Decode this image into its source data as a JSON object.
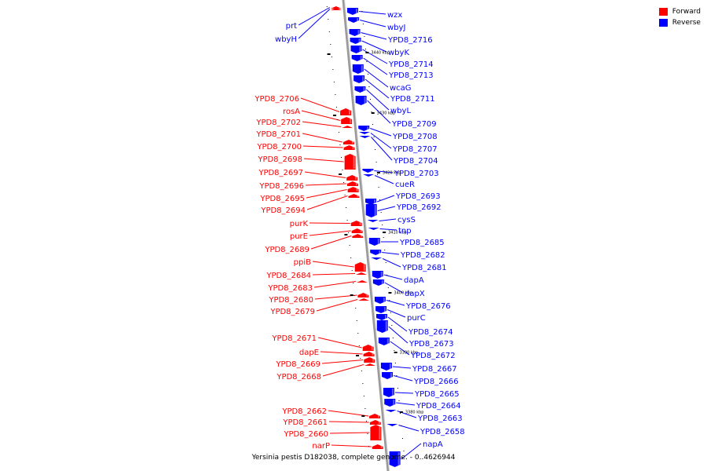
{
  "caption": "Yersinia pestis D182038, complete genome. - 0..4626944",
  "colors": {
    "forward": "#ff0000",
    "reverse": "#0000ff",
    "axis": "#888888"
  },
  "legend": [
    {
      "label": "Forward",
      "color": "#ff0000"
    },
    {
      "label": "Reverse",
      "color": "#0000ff"
    }
  ],
  "scale_ticks": [
    "3440 kbp",
    "3430 kbp",
    "3420 kbp",
    "3410 kbp",
    "3400 kbp",
    "3390 kbp",
    "3380 kbp"
  ],
  "forward_genes": [
    "prt",
    "wbyH",
    "YPD8_2706",
    "rosA",
    "YPD8_2702",
    "YPD8_2701",
    "YPD8_2700",
    "YPD8_2698",
    "YPD8_2697",
    "YPD8_2696",
    "YPD8_2695",
    "YPD8_2694",
    "purK",
    "purE",
    "YPD8_2689",
    "ppiB",
    "YPD8_2684",
    "YPD8_2683",
    "YPD8_2680",
    "YPD8_2679",
    "YPD8_2671",
    "dapE",
    "YPD8_2669",
    "YPD8_2668",
    "YPD8_2662",
    "YPD8_2661",
    "YPD8_2660",
    "narP"
  ],
  "reverse_genes": [
    "wzx",
    "wbyJ",
    "YPD8_2716",
    "wbyK",
    "YPD8_2714",
    "YPD8_2713",
    "wcaG",
    "YPD8_2711",
    "wbyL",
    "YPD8_2709",
    "YPD8_2708",
    "YPD8_2707",
    "YPD8_2704",
    "YPD8_2703",
    "cueR",
    "YPD8_2693",
    "YPD8_2692",
    "cysS",
    "tnp",
    "YPD8_2685",
    "YPD8_2682",
    "YPD8_2681",
    "dapA",
    "dapX",
    "YPD8_2676",
    "purC",
    "YPD8_2674",
    "YPD8_2673",
    "YPD8_2672",
    "YPD8_2667",
    "YPD8_2666",
    "YPD8_2665",
    "YPD8_2664",
    "YPD8_2663",
    "YPD8_2658",
    "napA"
  ]
}
